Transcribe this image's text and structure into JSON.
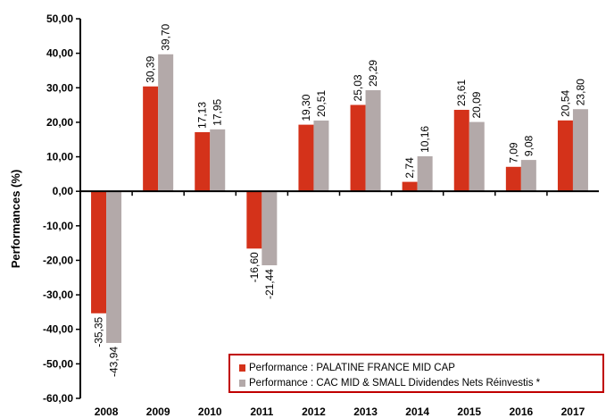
{
  "chart_data": {
    "type": "bar",
    "categories": [
      "2008",
      "2009",
      "2010",
      "2011",
      "2012",
      "2013",
      "2014",
      "2015",
      "2016",
      "2017"
    ],
    "series": [
      {
        "name": "Performance : PALATINE FRANCE MID CAP",
        "color": "#d4321a",
        "values": [
          -35.35,
          30.39,
          17.13,
          -16.6,
          19.3,
          25.03,
          2.74,
          23.61,
          7.09,
          20.54
        ],
        "labels": [
          "-35,35",
          "30,39",
          "17,13",
          "-16,60",
          "19,30",
          "25,03",
          "2,74",
          "23,61",
          "7,09",
          "20,54"
        ]
      },
      {
        "name": "Performance : CAC MID & SMALL Dividendes Nets Réinvestis *",
        "color": "#b3a9a9",
        "values": [
          -43.94,
          39.7,
          17.95,
          -21.44,
          20.51,
          29.29,
          10.16,
          20.09,
          9.08,
          23.8
        ],
        "labels": [
          "-43,94",
          "39,70",
          "17,95",
          "-21,44",
          "20,51",
          "29,29",
          "10,16",
          "20,09",
          "9,08",
          "23,80"
        ]
      }
    ],
    "ylabel": "Performances (%)",
    "ylim": [
      -60,
      50
    ],
    "yticks": [
      "-60,00",
      "-50,00",
      "-40,00",
      "-30,00",
      "-20,00",
      "-10,00",
      "0,00",
      "10,00",
      "20,00",
      "30,00",
      "40,00",
      "50,00"
    ],
    "grid": false,
    "legend": "bottom-right"
  }
}
